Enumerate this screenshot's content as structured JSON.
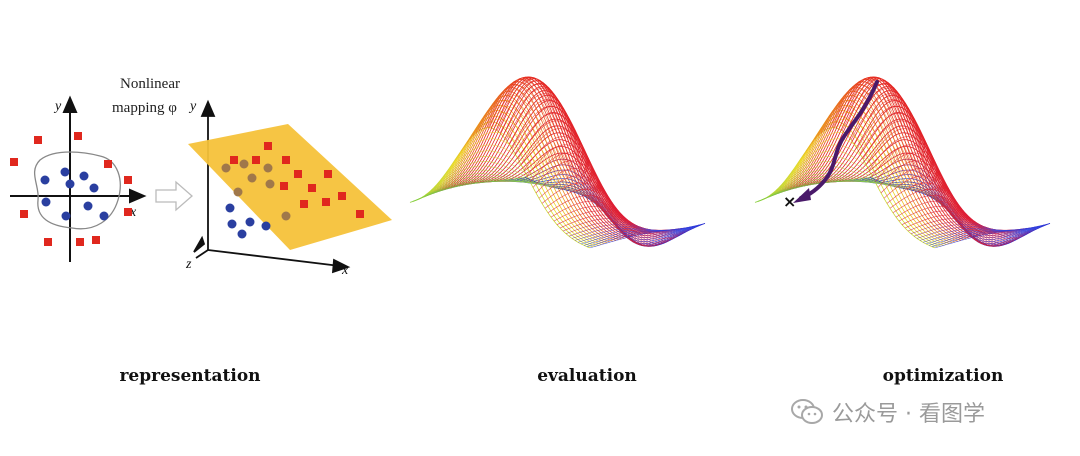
{
  "panels": {
    "representation": {
      "caption": "representation",
      "mapping_label_line1": "Nonlinear",
      "mapping_label_line2": "mapping φ",
      "axis_y": "y",
      "axis_x": "x",
      "axis_z": "z",
      "class_colors": {
        "square": "#e0281e",
        "circle": "#2a3fa0",
        "mapped_circle": "#a0784a",
        "plane": "#f6c23a"
      }
    },
    "evaluation": {
      "caption": "evaluation"
    },
    "optimization": {
      "caption": "optimization",
      "path_color": "#4a1a6a",
      "marker": "×"
    }
  },
  "watermark": {
    "text": "公众号 · 看图学",
    "icon": "wechat-icon"
  }
}
